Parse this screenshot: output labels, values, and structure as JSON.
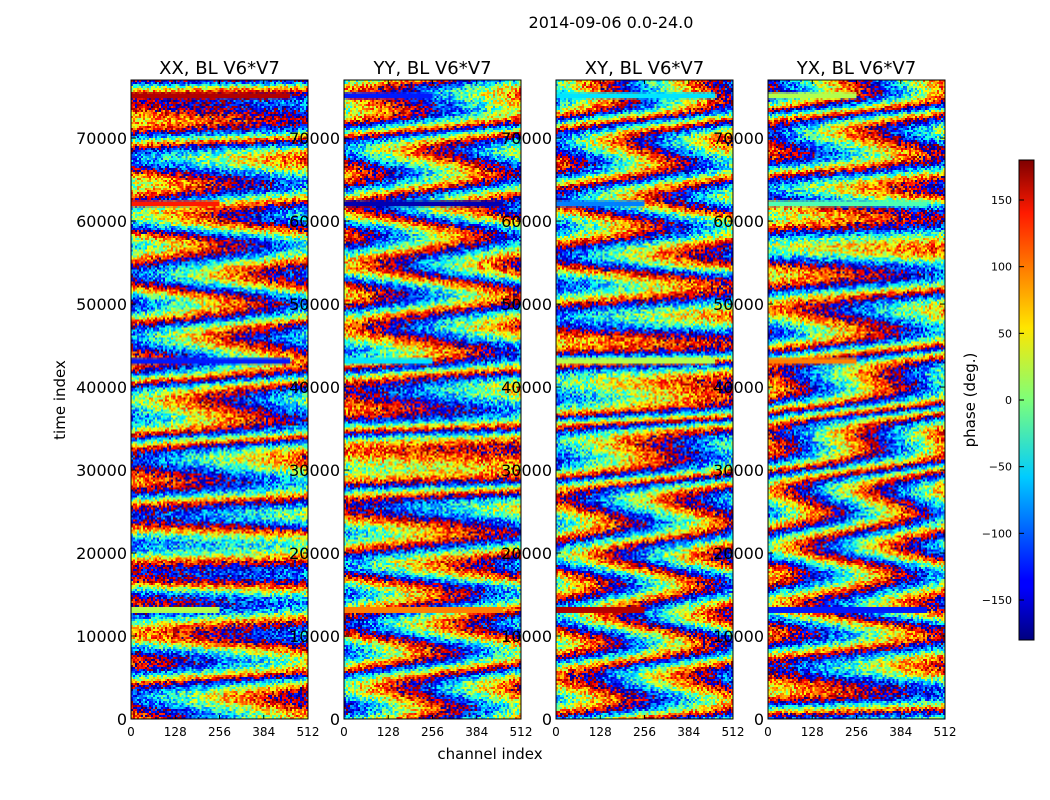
{
  "chart_data": {
    "type": "heatmap",
    "title": "2014-09-06 0.0-24.0",
    "xlabel": "channel index",
    "ylabel": "time index",
    "xlim": [
      0,
      512
    ],
    "ylim": [
      0,
      77000
    ],
    "xticks": [
      0,
      128,
      256,
      384,
      512
    ],
    "yticks": [
      0,
      10000,
      20000,
      30000,
      40000,
      50000,
      60000,
      70000
    ],
    "panels": [
      {
        "title": "XX, BL V6*V7",
        "pol": "XX"
      },
      {
        "title": "YY, BL V6*V7",
        "pol": "YY"
      },
      {
        "title": "XY, BL V6*V7",
        "pol": "XY"
      },
      {
        "title": "YX, BL V6*V7",
        "pol": "YX"
      }
    ],
    "colorbar": {
      "label": "phase (deg.)",
      "range": [
        -180,
        180
      ],
      "ticks": [
        150,
        100,
        50,
        0,
        -50,
        -100,
        -150
      ],
      "colormap": "jet"
    }
  }
}
